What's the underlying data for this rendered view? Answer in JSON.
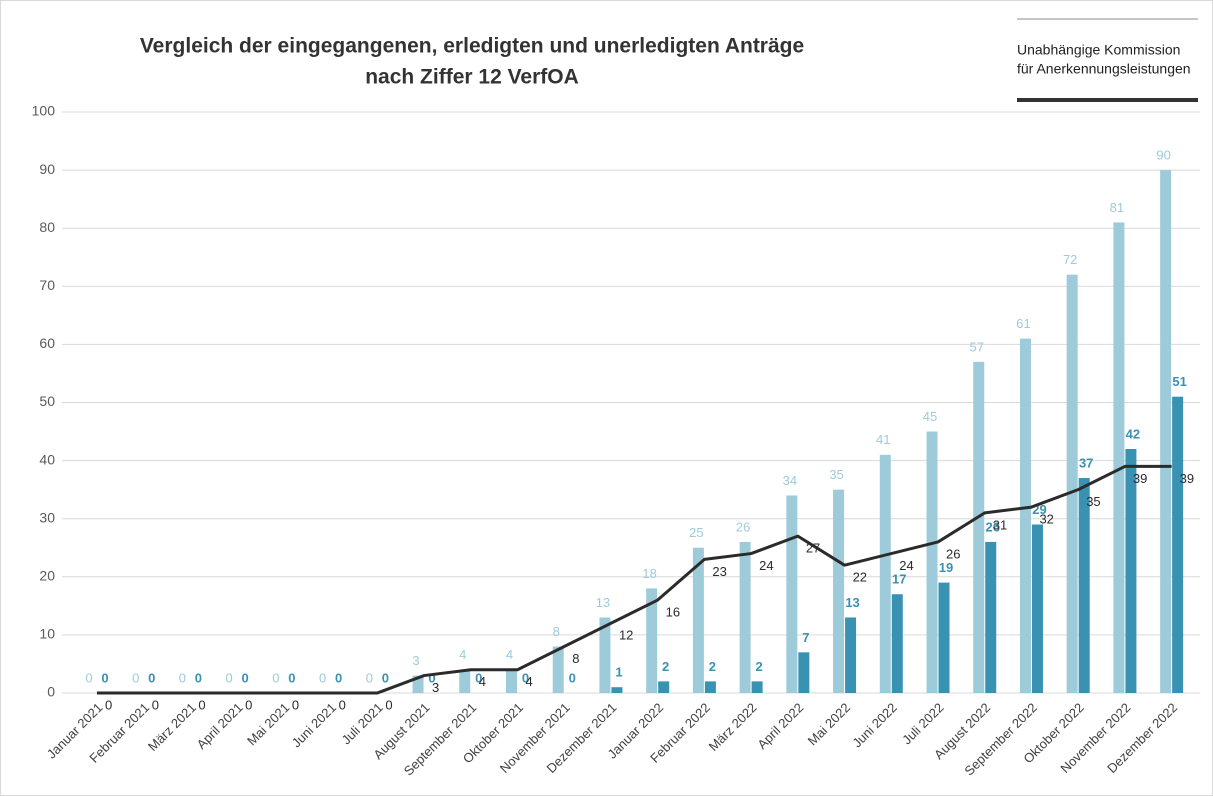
{
  "chart_data": {
    "type": "bar_line",
    "title": [
      "Vergleich der eingegangenen, erledigten und unerledigten Anträge",
      "nach Ziffer 12 VerfOA"
    ],
    "header": [
      "Unabhängige Kommission",
      "für Anerkennungsleistungen"
    ],
    "categories": [
      "Januar 2021",
      "Februar 2021",
      "März 2021",
      "April 2021",
      "Mai 2021",
      "Juni 2021",
      "Juli 2021",
      "August 2021",
      "September 2021",
      "Oktober 2021",
      "November 2021",
      "Dezember 2021",
      "Januar 2022",
      "Februar 2022",
      "März 2022",
      "April 2022",
      "Mai 2022",
      "Juni 2022",
      "Juli 2022",
      "August 2022",
      "September 2022",
      "Oktober 2022",
      "November 2022",
      "Dezember 2022"
    ],
    "series": [
      {
        "color": "#9ecbda",
        "kind": "bar",
        "values": [
          0,
          0,
          0,
          0,
          0,
          0,
          0,
          3,
          4,
          4,
          8,
          13,
          18,
          25,
          26,
          34,
          35,
          41,
          45,
          57,
          61,
          72,
          81,
          90
        ]
      },
      {
        "color": "#3a92b2",
        "kind": "bar",
        "values": [
          0,
          0,
          0,
          0,
          0,
          0,
          0,
          0,
          0,
          0,
          0,
          1,
          2,
          2,
          2,
          7,
          13,
          17,
          19,
          26,
          29,
          37,
          42,
          51
        ]
      },
      {
        "color": "#2b2b2b",
        "kind": "line",
        "values": [
          0,
          0,
          0,
          0,
          0,
          0,
          0,
          3,
          4,
          4,
          8,
          12,
          16,
          23,
          24,
          27,
          22,
          24,
          26,
          31,
          32,
          35,
          39,
          39
        ]
      }
    ],
    "ylim": [
      0,
      100
    ],
    "yticks": [
      0,
      10,
      20,
      30,
      40,
      50,
      60,
      70,
      80,
      90,
      100
    ],
    "grid": true
  }
}
